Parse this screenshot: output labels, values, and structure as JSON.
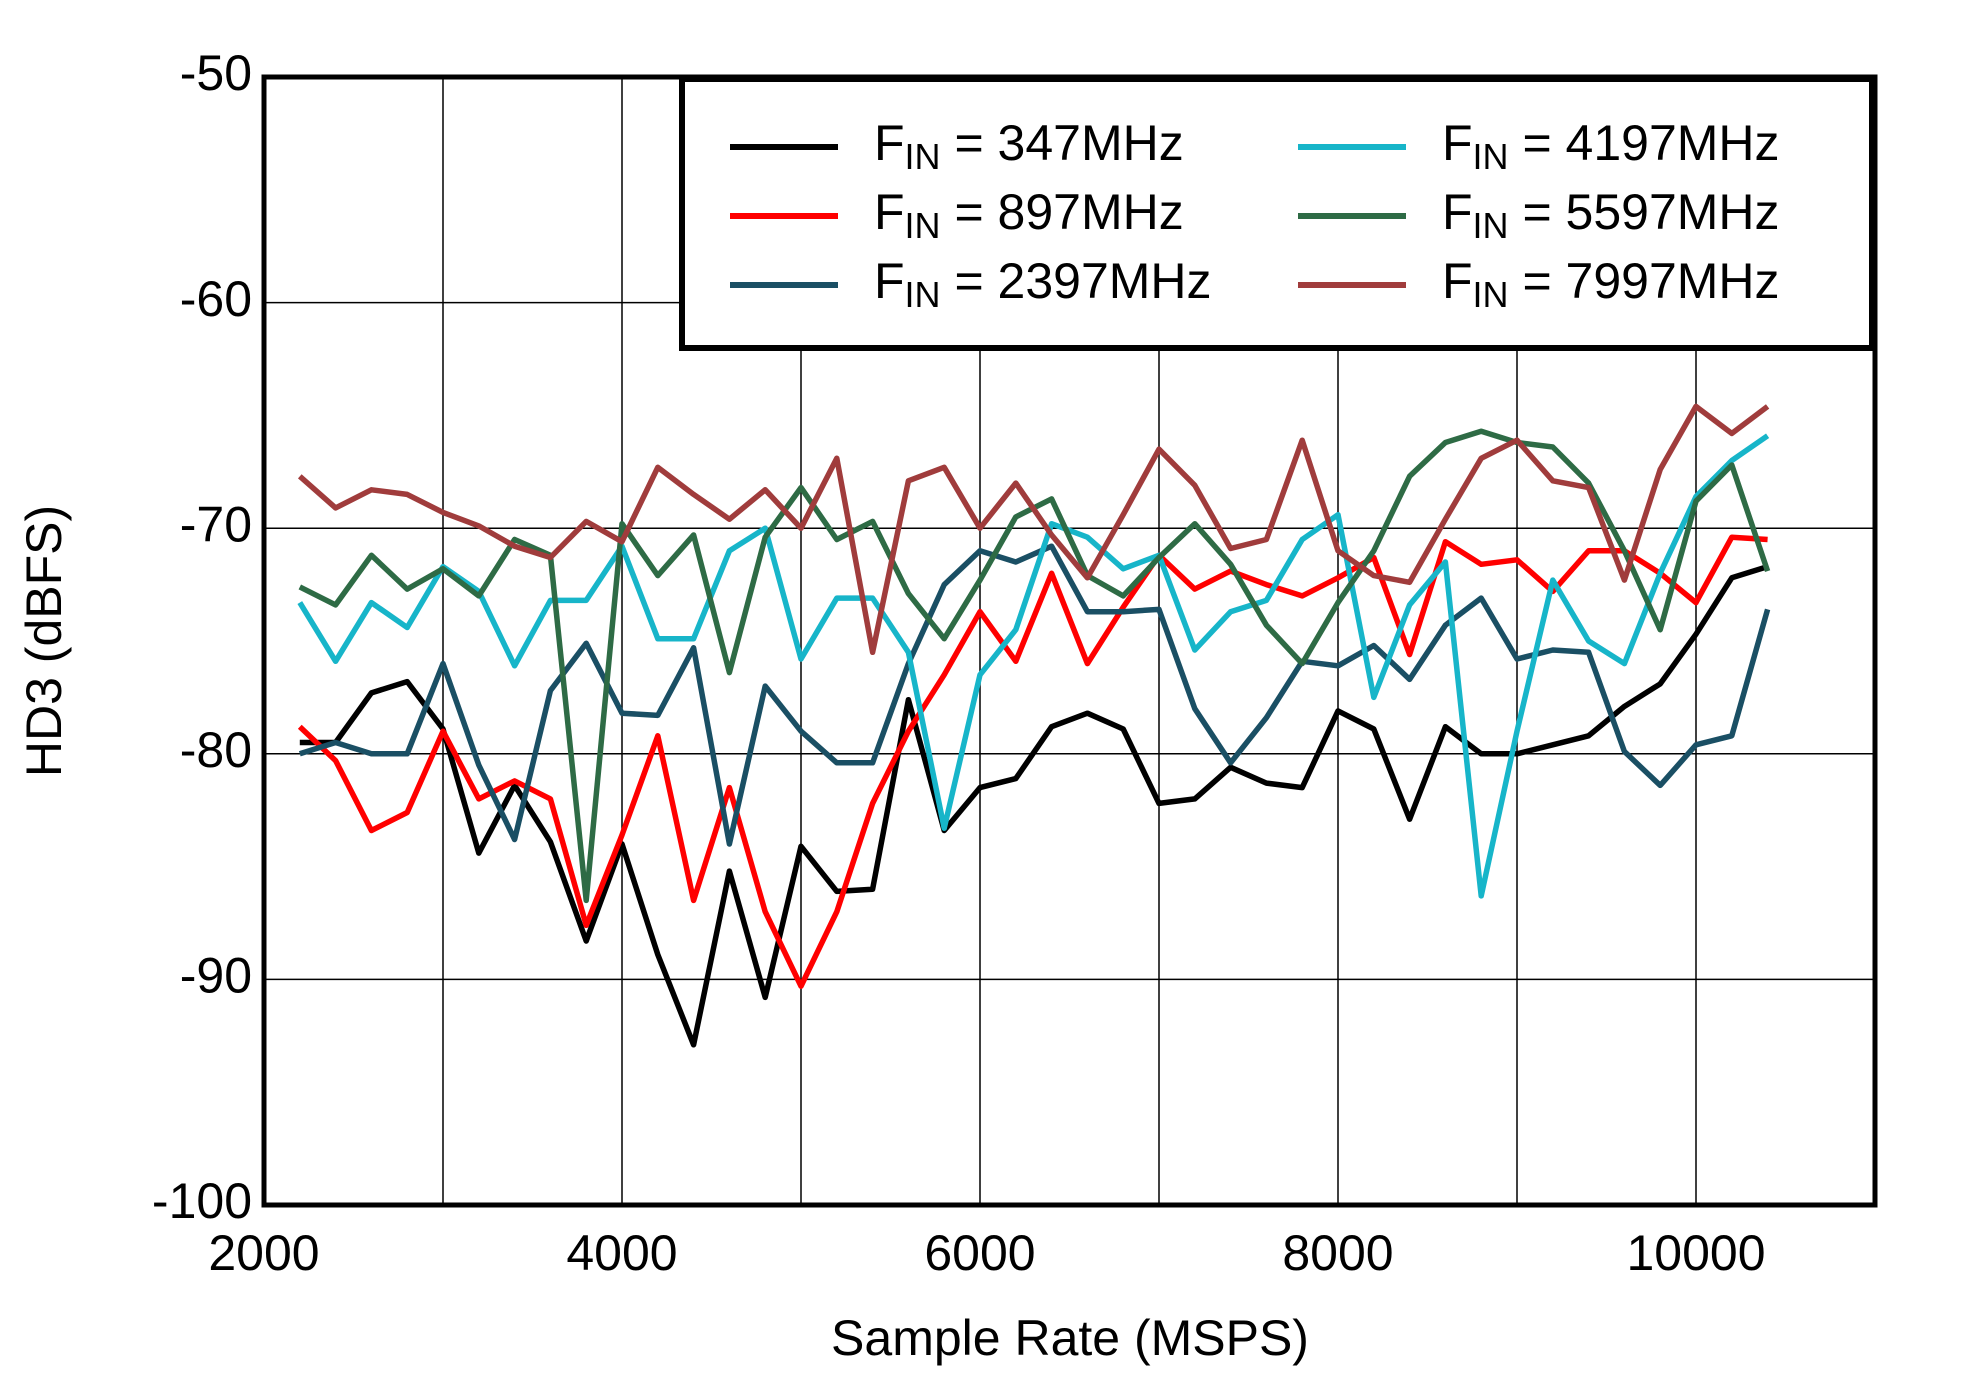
{
  "chart_data": {
    "type": "line",
    "xlabel": "Sample Rate  (MSPS)",
    "ylabel": "HD3  (dBFS)",
    "x": [
      2200,
      2400,
      2600,
      2800,
      3000,
      3200,
      3400,
      3600,
      3800,
      4000,
      4200,
      4400,
      4600,
      4800,
      5000,
      5200,
      5400,
      5600,
      5800,
      6000,
      6200,
      6400,
      6600,
      6800,
      7000,
      7200,
      7400,
      7600,
      7800,
      8000,
      8200,
      8400,
      8600,
      8800,
      9000,
      9200,
      9400,
      9600,
      9800,
      10000,
      10200,
      10400
    ],
    "xlim": [
      2000,
      11000
    ],
    "xticks": [
      2000,
      4000,
      6000,
      8000,
      10000
    ],
    "xminorticks": [
      3000,
      5000,
      7000,
      9000,
      11000
    ],
    "ylim": [
      -100,
      -50
    ],
    "yticks": [
      -100,
      -90,
      -80,
      -70,
      -60,
      -50
    ],
    "grid": true,
    "legend": "upper right",
    "series": [
      {
        "name": "FIN = 347MHz",
        "color": "#000000",
        "values": [
          -79.5,
          -79.5,
          -77.3,
          -76.8,
          -78.9,
          -84.4,
          -81.4,
          -83.9,
          -88.3,
          -84.0,
          -88.9,
          -92.9,
          -85.2,
          -90.8,
          -84.1,
          -86.1,
          -86.0,
          -77.6,
          -83.4,
          -81.5,
          -81.1,
          -78.8,
          -78.2,
          -78.9,
          -82.2,
          -82.0,
          -80.6,
          -81.3,
          -81.5,
          -78.1,
          -78.9,
          -82.9,
          -78.8,
          -80.0,
          -80.0,
          -79.6,
          -79.2,
          -77.9,
          -76.9,
          -74.7,
          -72.2,
          -71.7
        ]
      },
      {
        "name": "FIN = 897MHz",
        "color": "#ff0000",
        "values": [
          -78.8,
          -80.3,
          -83.4,
          -82.6,
          -79.0,
          -82.0,
          -81.2,
          -82.0,
          -87.6,
          -83.6,
          -79.2,
          -86.5,
          -81.5,
          -87.0,
          -90.3,
          -87.0,
          -82.2,
          -79.0,
          -76.5,
          -73.7,
          -75.9,
          -72.0,
          -76.0,
          -73.5,
          -71.2,
          -72.7,
          -71.9,
          -72.5,
          -73.0,
          -72.2,
          -71.3,
          -75.6,
          -70.6,
          -71.6,
          -71.4,
          -72.8,
          -71.0,
          -71.0,
          -72.0,
          -73.3,
          -70.4,
          -70.5
        ]
      },
      {
        "name": "FIN = 2397MHz",
        "color": "#1a4f64",
        "values": [
          -80.0,
          -79.5,
          -80.0,
          -80.0,
          -76.0,
          -80.5,
          -83.8,
          -77.2,
          -75.1,
          -78.2,
          -78.3,
          -75.3,
          -84.0,
          -77.0,
          -79.0,
          -80.4,
          -80.4,
          -76.0,
          -72.5,
          -71.0,
          -71.5,
          -70.8,
          -73.7,
          -73.7,
          -73.6,
          -78.0,
          -80.4,
          -78.4,
          -75.9,
          -76.1,
          -75.2,
          -76.7,
          -74.3,
          -73.1,
          -75.8,
          -75.4,
          -75.5,
          -79.9,
          -81.4,
          -79.6,
          -79.2,
          -73.6
        ]
      },
      {
        "name": "FIN = 4197MHz",
        "color": "#17b5c9",
        "values": [
          -73.3,
          -75.9,
          -73.3,
          -74.4,
          -71.7,
          -72.8,
          -76.1,
          -73.2,
          -73.2,
          -70.8,
          -74.9,
          -74.9,
          -71.0,
          -70.0,
          -75.8,
          -73.1,
          -73.1,
          -75.5,
          -83.3,
          -76.5,
          -74.5,
          -69.8,
          -70.4,
          -71.8,
          -71.2,
          -75.4,
          -73.7,
          -73.2,
          -70.5,
          -69.4,
          -77.5,
          -73.4,
          -71.5,
          -86.3,
          -79.0,
          -72.3,
          -75.0,
          -76.0,
          -72.0,
          -68.6,
          -67.0,
          -65.9
        ]
      },
      {
        "name": "FIN = 5597MHz",
        "color": "#2e6b45",
        "values": [
          -72.6,
          -73.4,
          -71.2,
          -72.7,
          -71.8,
          -73.0,
          -70.5,
          -71.2,
          -86.5,
          -69.8,
          -72.1,
          -70.3,
          -76.4,
          -70.4,
          -68.2,
          -70.5,
          -69.7,
          -72.9,
          -74.9,
          -72.3,
          -69.5,
          -68.7,
          -72.1,
          -73.0,
          -71.3,
          -69.8,
          -71.6,
          -74.3,
          -76.0,
          -73.3,
          -71.0,
          -67.7,
          -66.2,
          -65.7,
          -66.2,
          -66.4,
          -68.0,
          -71.0,
          -74.5,
          -68.8,
          -67.2,
          -71.9
        ]
      },
      {
        "name": "FIN = 7997MHz",
        "color": "#a03c3c",
        "values": [
          -67.7,
          -69.1,
          -68.3,
          -68.5,
          -69.3,
          -69.9,
          -70.8,
          -71.3,
          -69.7,
          -70.6,
          -67.3,
          -68.5,
          -69.6,
          -68.3,
          -70.0,
          -66.9,
          -75.5,
          -67.9,
          -67.3,
          -70.0,
          -68.0,
          -70.3,
          -72.2,
          -69.4,
          -66.5,
          -68.1,
          -70.9,
          -70.5,
          -66.1,
          -71.0,
          -72.1,
          -72.4,
          -69.6,
          -66.9,
          -66.1,
          -67.9,
          -68.2,
          -72.3,
          -67.4,
          -64.6,
          -65.8,
          -64.6
        ]
      }
    ]
  }
}
